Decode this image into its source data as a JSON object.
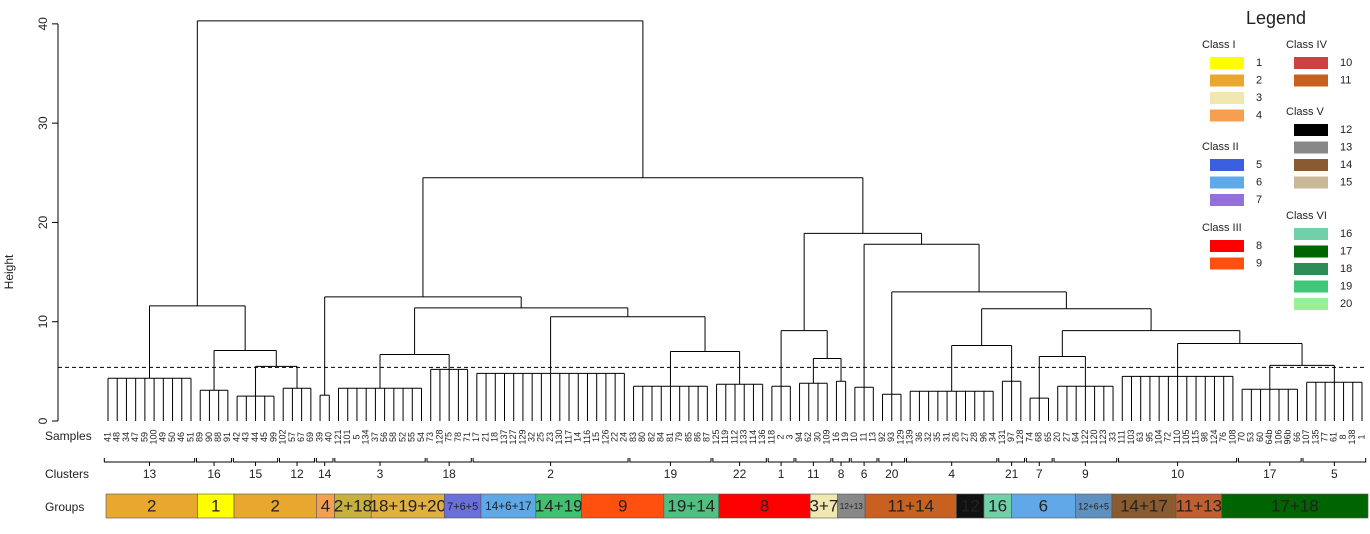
{
  "chart_data": {
    "type": "dendrogram",
    "y_label": "Height",
    "ylim": [
      0,
      42
    ],
    "yticks": [
      0,
      10,
      20,
      30,
      40
    ],
    "cutoff": 5.4,
    "row_labels": [
      "Samples",
      "Clusters",
      "Groups"
    ],
    "tree": {
      "height": 40.3,
      "children": [
        {
          "height": 11.6,
          "children": [
            {
              "label": "13",
              "height": 4.3,
              "color": "#e0b030",
              "samples": [
                "41",
                "48",
                "34",
                "47",
                "59",
                "100",
                "49",
                "50",
                "46",
                "51"
              ]
            },
            {
              "height": 7.1,
              "children": [
                {
                  "label": "16",
                  "height": 3.1,
                  "color": "#e6d620",
                  "samples": [
                    "89",
                    "90",
                    "88",
                    "91"
                  ]
                },
                {
                  "height": 5.5,
                  "children": [
                    {
                      "label": "15",
                      "height": 2.5,
                      "color": "#e0b030",
                      "samples": [
                        "42",
                        "43",
                        "44",
                        "45",
                        "99"
                      ]
                    },
                    {
                      "label": "12",
                      "height": 3.3,
                      "color": "#e0b030",
                      "samples": [
                        "102",
                        "57",
                        "67",
                        "69"
                      ]
                    }
                  ]
                }
              ]
            }
          ]
        },
        {
          "height": 24.5,
          "children": [
            {
              "height": 12.5,
              "children": [
                {
                  "label": "14",
                  "height": 2.6,
                  "color": "#f0a050",
                  "samples": [
                    "39",
                    "40"
                  ]
                },
                {
                  "height": 11.4,
                  "children": [
                    {
                      "height": 6.7,
                      "children": [
                        {
                          "label": "3",
                          "height": 3.3,
                          "color": "#c8a840",
                          "samples": [
                            "121",
                            "101",
                            "5",
                            "134",
                            "37",
                            "56",
                            "58",
                            "52",
                            "55",
                            "54"
                          ]
                        },
                        {
                          "label": "18",
                          "height": 5.2,
                          "color": "#2e8b57",
                          "samples": [
                            "73",
                            "128",
                            "75",
                            "78",
                            "71"
                          ]
                        }
                      ]
                    },
                    {
                      "height": 10.5,
                      "children": [
                        {
                          "label": "2",
                          "height": 4.8,
                          "color": "#4a7fd8",
                          "samples": [
                            "17",
                            "21",
                            "18",
                            "137",
                            "127",
                            "129",
                            "32",
                            "25",
                            "23",
                            "130",
                            "117",
                            "14",
                            "116",
                            "15",
                            "126",
                            "22",
                            "24"
                          ]
                        },
                        {
                          "height": 7.0,
                          "children": [
                            {
                              "label": "19",
                              "height": 3.5,
                              "color": "#e85020",
                              "samples": [
                                "83",
                                "80",
                                "82",
                                "84",
                                "81",
                                "79",
                                "85",
                                "86",
                                "87"
                              ]
                            },
                            {
                              "label": "22",
                              "height": 3.7,
                              "color": "#40b070",
                              "samples": [
                                "125",
                                "119",
                                "112",
                                "133",
                                "114",
                                "136"
                              ]
                            }
                          ]
                        }
                      ]
                    }
                  ]
                }
              ]
            },
            {
              "height": 18.9,
              "children": [
                {
                  "height": 9.1,
                  "children": [
                    {
                      "label": "1",
                      "height": 3.5,
                      "color": "#e02020",
                      "samples": [
                        "118",
                        "2",
                        "3"
                      ]
                    },
                    {
                      "height": 6.3,
                      "children": [
                        {
                          "label": "11",
                          "height": 3.8,
                          "color": "#e02020",
                          "samples": [
                            "94",
                            "62",
                            "30",
                            "109"
                          ]
                        },
                        {
                          "label": "8",
                          "height": 4.0,
                          "color": "#4a6fd8",
                          "samples": [
                            "16",
                            "19"
                          ]
                        }
                      ]
                    }
                  ]
                },
                {
                  "height": 17.8,
                  "children": [
                    {
                      "label": "6",
                      "height": 3.4,
                      "color": "#d8c890",
                      "samples": [
                        "10",
                        "11",
                        "13"
                      ]
                    },
                    {
                      "height": 13.0,
                      "children": [
                        {
                          "label": "20",
                          "height": 2.7,
                          "color": "#606060",
                          "samples": [
                            "92",
                            "93",
                            "129"
                          ]
                        },
                        {
                          "height": 11.3,
                          "children": [
                            {
                              "height": 7.6,
                              "children": [
                                {
                                  "label": "4",
                                  "height": 3.0,
                                  "color": "#8a5a30",
                                  "samples": [
                                    "139",
                                    "36",
                                    "32",
                                    "35",
                                    "31",
                                    "26",
                                    "27",
                                    "28",
                                    "96",
                                    "34"
                                  ]
                                },
                                {
                                  "label": "21",
                                  "height": 4.0,
                                  "color": "#111111",
                                  "samples": [
                                    "131",
                                    "97",
                                    "128"
                                  ]
                                }
                              ]
                            },
                            {
                              "height": 9.1,
                              "children": [
                                {
                                  "height": 6.5,
                                  "children": [
                                    {
                                      "label": "7",
                                      "height": 2.3,
                                      "color": "#40b888",
                                      "samples": [
                                        "74",
                                        "68",
                                        "65"
                                      ]
                                    },
                                    {
                                      "label": "9",
                                      "height": 3.5,
                                      "color": "#4a7fd8",
                                      "samples": [
                                        "20",
                                        "27",
                                        "64",
                                        "122",
                                        "120",
                                        "123",
                                        "33"
                                      ]
                                    }
                                  ]
                                },
                                {
                                  "height": 7.8,
                                  "children": [
                                    {
                                      "label": "10",
                                      "height": 4.5,
                                      "color": "#a04830",
                                      "samples": [
                                        "111",
                                        "103",
                                        "63",
                                        "95",
                                        "104",
                                        "72",
                                        "110",
                                        "105",
                                        "115",
                                        "98",
                                        "124",
                                        "76",
                                        "108"
                                      ]
                                    },
                                    {
                                      "height": 5.6,
                                      "children": [
                                        {
                                          "label": "17",
                                          "height": 3.2,
                                          "color": "#006400",
                                          "samples": [
                                            "70",
                                            "53",
                                            "60",
                                            "64b",
                                            "106",
                                            "96b",
                                            "66"
                                          ]
                                        },
                                        {
                                          "label": "5",
                                          "height": 3.9,
                                          "color": "#006400",
                                          "samples": [
                                            "107",
                                            "135",
                                            "77",
                                            "61",
                                            "8",
                                            "138",
                                            "1"
                                          ]
                                        }
                                      ]
                                    }
                                  ]
                                }
                              ]
                            }
                          ]
                        }
                      ]
                    }
                  ]
                }
              ]
            }
          ]
        }
      ]
    },
    "groups": [
      {
        "label": "2",
        "n": 10,
        "color": "#e8a830"
      },
      {
        "label": "1",
        "n": 4,
        "color": "#ffff00"
      },
      {
        "label": "2",
        "n": 9,
        "color": "#e8a830"
      },
      {
        "label": "4",
        "n": 2,
        "color": "#f5a050"
      },
      {
        "label": "2+18",
        "n": 4,
        "color": "#c8b040"
      },
      {
        "label": "18+19+20",
        "n": 8,
        "color": "#e0b040"
      },
      {
        "label": "7+6+5",
        "n": 4,
        "color": "#6a70d8"
      },
      {
        "label": "14+6+17",
        "n": 6,
        "color": "#5fa8e8"
      },
      {
        "label": "14+19",
        "n": 5,
        "color": "#40c070"
      },
      {
        "label": "9",
        "n": 9,
        "color": "#ff5010"
      },
      {
        "label": "19+14",
        "n": 6,
        "color": "#50c080"
      },
      {
        "label": "8",
        "n": 10,
        "color": "#ff0000"
      },
      {
        "label": "3+7",
        "n": 3,
        "color": "#f0e8b0"
      },
      {
        "label": "12+13",
        "n": 3,
        "color": "#888888"
      },
      {
        "label": "11+14",
        "n": 10,
        "color": "#c86020"
      },
      {
        "label": "12",
        "n": 3,
        "color": "#111111"
      },
      {
        "label": "16",
        "n": 3,
        "color": "#70d0a8"
      },
      {
        "label": "6",
        "n": 7,
        "color": "#60a8e8"
      },
      {
        "label": "12+6+5",
        "n": 4,
        "color": "#6090c0"
      },
      {
        "label": "14+17",
        "n": 7,
        "color": "#8a5a30"
      },
      {
        "label": "11+13",
        "n": 5,
        "color": "#c06030"
      },
      {
        "label": "17+18",
        "n": 16,
        "color": "#006400"
      }
    ],
    "legend": {
      "title": "Legend",
      "classes": [
        {
          "name": "Class I",
          "items": [
            {
              "label": "1",
              "color": "#ffff00"
            },
            {
              "label": "2",
              "color": "#e8a830"
            },
            {
              "label": "3",
              "color": "#f0e8b0"
            },
            {
              "label": "4",
              "color": "#f5a050"
            }
          ]
        },
        {
          "name": "Class II",
          "items": [
            {
              "label": "5",
              "color": "#3a5fe0"
            },
            {
              "label": "6",
              "color": "#60a8e8"
            },
            {
              "label": "7",
              "color": "#9370db"
            }
          ]
        },
        {
          "name": "Class III",
          "items": [
            {
              "label": "8",
              "color": "#ff0000"
            },
            {
              "label": "9",
              "color": "#ff5010"
            }
          ]
        },
        {
          "name": "Class IV",
          "items": [
            {
              "label": "10",
              "color": "#d04040"
            },
            {
              "label": "11",
              "color": "#c86020"
            }
          ]
        },
        {
          "name": "Class V",
          "items": [
            {
              "label": "12",
              "color": "#000000"
            },
            {
              "label": "13",
              "color": "#888888"
            },
            {
              "label": "14",
              "color": "#8a5a30"
            },
            {
              "label": "15",
              "color": "#c8b898"
            }
          ]
        },
        {
          "name": "Class VI",
          "items": [
            {
              "label": "16",
              "color": "#70d0a8"
            },
            {
              "label": "17",
              "color": "#006400"
            },
            {
              "label": "18",
              "color": "#2e8b57"
            },
            {
              "label": "19",
              "color": "#40c878"
            },
            {
              "label": "20",
              "color": "#98f098"
            }
          ]
        }
      ]
    }
  }
}
